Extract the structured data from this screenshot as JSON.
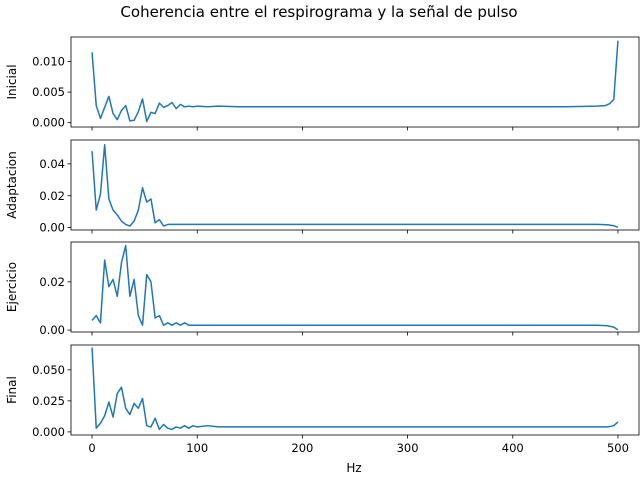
{
  "chart_data": {
    "type": "line",
    "title": "Coherencia entre el respirograma y la señal de pulso",
    "xlabel": "Hz",
    "xlim": [
      -20,
      520
    ],
    "xticks": [
      0,
      100,
      200,
      300,
      400,
      500
    ],
    "grid": false,
    "line_color": "#1f77b4",
    "panels": [
      {
        "ylabel": "Inicial",
        "ylim": [
          -0.0007,
          0.014
        ],
        "yticks": [
          0.0,
          0.005,
          0.01
        ],
        "ytick_labels": [
          "0.000",
          "0.005",
          "0.010"
        ],
        "series": [
          {
            "x": [
              0,
              4,
              8,
              12,
              16,
              20,
              24,
              28,
              32,
              36,
              40,
              44,
              48,
              52,
              56,
              60,
              64,
              68,
              72,
              76,
              80,
              84,
              88,
              92,
              96,
              100,
              110,
              120,
              140,
              160,
              200,
              250,
              300,
              350,
              400,
              450,
              480,
              488,
              492,
              496,
              500
            ],
            "y": [
              0.0115,
              0.0028,
              0.0007,
              0.0025,
              0.0043,
              0.0015,
              0.0005,
              0.002,
              0.0028,
              0.0003,
              0.0004,
              0.0018,
              0.0039,
              0.0002,
              0.0017,
              0.0015,
              0.0032,
              0.0025,
              0.0028,
              0.0033,
              0.0023,
              0.003,
              0.0026,
              0.0027,
              0.0026,
              0.0027,
              0.0026,
              0.0027,
              0.0026,
              0.0026,
              0.0026,
              0.0026,
              0.0026,
              0.0026,
              0.0026,
              0.0026,
              0.0027,
              0.0028,
              0.0031,
              0.0038,
              0.0134
            ]
          }
        ]
      },
      {
        "ylabel": "Adaptacion",
        "ylim": [
          -0.0015,
          0.055
        ],
        "yticks": [
          0.0,
          0.02,
          0.04
        ],
        "ytick_labels": [
          "0.00",
          "0.02",
          "0.04"
        ],
        "series": [
          {
            "x": [
              0,
              4,
              8,
              12,
              16,
              20,
              24,
              28,
              32,
              36,
              40,
              44,
              48,
              52,
              56,
              60,
              64,
              68,
              72,
              76,
              80,
              90,
              100,
              120,
              150,
              200,
              300,
              400,
              480,
              490,
              496,
              500
            ],
            "y": [
              0.048,
              0.011,
              0.021,
              0.052,
              0.018,
              0.011,
              0.008,
              0.004,
              0.002,
              0.001,
              0.004,
              0.011,
              0.025,
              0.016,
              0.018,
              0.003,
              0.005,
              0.001,
              0.002,
              0.002,
              0.002,
              0.002,
              0.002,
              0.002,
              0.002,
              0.002,
              0.002,
              0.002,
              0.002,
              0.0018,
              0.0012,
              0.0002
            ]
          }
        ]
      },
      {
        "ylabel": "Ejercicio",
        "ylim": [
          -0.0008,
          0.0365
        ],
        "yticks": [
          0.0,
          0.02
        ],
        "ytick_labels": [
          "0.00",
          "0.02"
        ],
        "series": [
          {
            "x": [
              0,
              4,
              8,
              12,
              16,
              20,
              24,
              28,
              32,
              36,
              40,
              44,
              48,
              52,
              56,
              60,
              64,
              68,
              72,
              76,
              80,
              84,
              88,
              92,
              96,
              100,
              110,
              120,
              150,
              200,
              300,
              400,
              480,
              490,
              496,
              500
            ],
            "y": [
              0.004,
              0.006,
              0.003,
              0.029,
              0.018,
              0.021,
              0.014,
              0.028,
              0.035,
              0.014,
              0.021,
              0.006,
              0.002,
              0.023,
              0.02,
              0.005,
              0.006,
              0.002,
              0.003,
              0.002,
              0.003,
              0.002,
              0.003,
              0.002,
              0.002,
              0.002,
              0.002,
              0.002,
              0.002,
              0.002,
              0.002,
              0.002,
              0.002,
              0.0018,
              0.0012,
              0.0001
            ]
          }
        ]
      },
      {
        "ylabel": "Final",
        "ylim": [
          -0.0025,
          0.07
        ],
        "yticks": [
          0.0,
          0.025,
          0.05
        ],
        "ytick_labels": [
          "0.000",
          "0.025",
          "0.050"
        ],
        "series": [
          {
            "x": [
              0,
              4,
              8,
              12,
              16,
              20,
              24,
              28,
              32,
              36,
              40,
              44,
              48,
              52,
              56,
              60,
              64,
              68,
              72,
              76,
              80,
              84,
              88,
              92,
              96,
              100,
              110,
              120,
              150,
              200,
              300,
              400,
              480,
              490,
              496,
              500
            ],
            "y": [
              0.068,
              0.003,
              0.007,
              0.013,
              0.024,
              0.012,
              0.031,
              0.036,
              0.019,
              0.014,
              0.023,
              0.019,
              0.027,
              0.005,
              0.004,
              0.011,
              0.002,
              0.006,
              0.003,
              0.002,
              0.004,
              0.003,
              0.005,
              0.003,
              0.005,
              0.004,
              0.005,
              0.004,
              0.004,
              0.004,
              0.004,
              0.004,
              0.004,
              0.004,
              0.005,
              0.008
            ]
          }
        ]
      }
    ]
  }
}
